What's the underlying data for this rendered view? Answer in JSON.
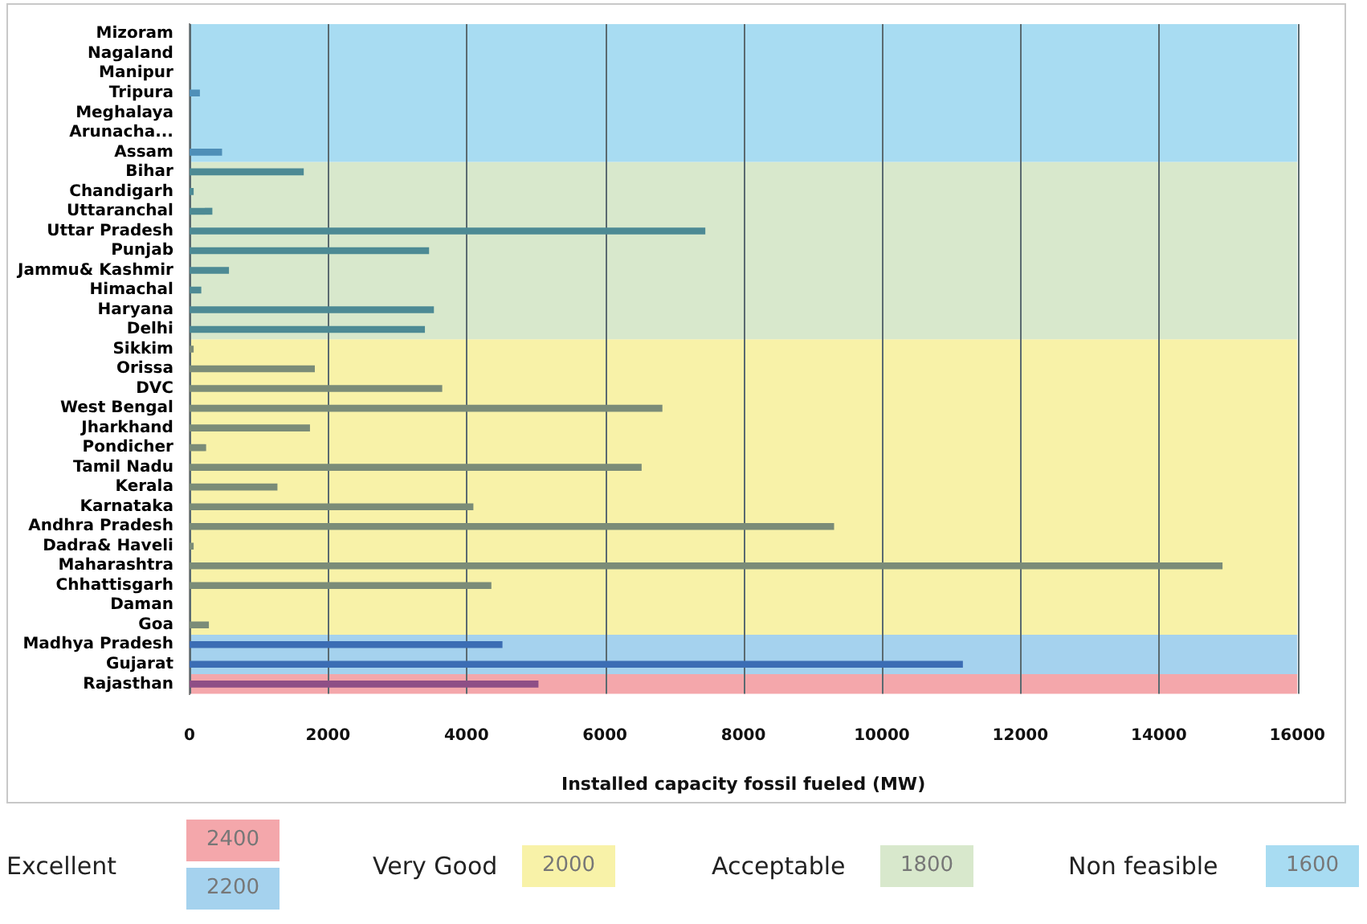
{
  "chart_data": {
    "type": "bar",
    "orientation": "horizontal",
    "xlabel": "Installed capacity fossil fueled (MW)",
    "categories": [
      "Mizoram",
      "Nagaland",
      "Manipur",
      "Tripura",
      "Meghalaya",
      "Arunacha...",
      "Assam",
      "Bihar",
      "Chandigarh",
      "Uttaranchal",
      "Uttar Pradesh",
      "Punjab",
      "Jammu& Kashmir",
      "Himachal",
      "Haryana",
      "Delhi",
      "Sikkim",
      "Orissa",
      "DVC",
      "West Bengal",
      "Jharkhand",
      "Pondicher",
      "Tamil Nadu",
      "Kerala",
      "Karnataka",
      "Andhra Pradesh",
      "Dadra& Haveli",
      "Maharashtra",
      "Chhattisgarh",
      "Daman",
      "Goa",
      "Madhya Pradesh",
      "Gujarat",
      "Rajasthan"
    ],
    "values": [
      0,
      0,
      0,
      150,
      0,
      0,
      470,
      1650,
      60,
      330,
      7450,
      3460,
      570,
      170,
      3530,
      3400,
      60,
      1810,
      3650,
      6830,
      1740,
      240,
      6530,
      1270,
      4100,
      9310,
      60,
      14920,
      4360,
      0,
      280,
      4520,
      11170,
      5040
    ],
    "colors": [
      "#4f8fb8",
      "#4f8fb8",
      "#4f8fb8",
      "#4f8fb8",
      "#4f8fb8",
      "#4f8fb8",
      "#4f8fb8",
      "#4d8a94",
      "#4d8a94",
      "#4d8a94",
      "#4d8a94",
      "#4d8a94",
      "#4d8a94",
      "#4d8a94",
      "#4d8a94",
      "#4d8a94",
      "#7b8c78",
      "#7b8c78",
      "#7b8c78",
      "#7b8c78",
      "#7b8c78",
      "#7b8c78",
      "#7b8c78",
      "#7b8c78",
      "#7b8c78",
      "#7b8c78",
      "#7b8c78",
      "#7b8c78",
      "#7b8c78",
      "#7b8c78",
      "#7b8c78",
      "#3b6db4",
      "#3b6db4",
      "#8e4f86"
    ],
    "xlim": [
      0,
      16000
    ],
    "xticks": [
      0,
      2000,
      4000,
      6000,
      8000,
      10000,
      12000,
      14000,
      16000
    ],
    "grid": "x",
    "bands": [
      {
        "axis": "y",
        "from": "Rajasthan",
        "to": "Rajasthan",
        "color": "#f4a7ab"
      },
      {
        "axis": "y",
        "from": "Madhya Pradesh",
        "to": "Gujarat",
        "color": "#a5d2ee"
      },
      {
        "axis": "y",
        "from": "Sikkim",
        "to": "Goa",
        "color": "#f8f2a8"
      },
      {
        "axis": "y",
        "from": "Bihar",
        "to": "Delhi",
        "color": "#d8e8cc"
      },
      {
        "axis": "y",
        "from": "Mizoram",
        "to": "Assam",
        "color": "#a8dcf2"
      }
    ],
    "annotations": [
      "Excellent",
      "2400",
      "2200",
      "Very Good",
      "2000",
      "Acceptable",
      "1800",
      "Non feasible",
      "1600"
    ]
  }
}
